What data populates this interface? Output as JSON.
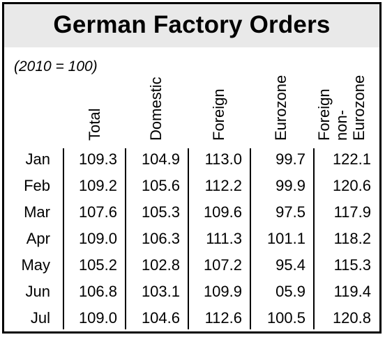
{
  "chart_data": {
    "type": "table",
    "title": "German Factory Orders",
    "subtitle": "(2010 = 100)",
    "columns": [
      "Total",
      "Domestic",
      "Foreign",
      "Eurozone",
      "Foreign\nnon-\nEurozone"
    ],
    "rows": [
      {
        "month": "Jan",
        "values": [
          "109.3",
          "104.9",
          "113.0",
          "99.7",
          "122.1"
        ]
      },
      {
        "month": "Feb",
        "values": [
          "109.2",
          "105.6",
          "112.2",
          "99.9",
          "120.6"
        ]
      },
      {
        "month": "Mar",
        "values": [
          "107.6",
          "105.3",
          "109.6",
          "97.5",
          "117.9"
        ]
      },
      {
        "month": "Apr",
        "values": [
          "109.0",
          "106.3",
          "111.3",
          "101.1",
          "118.2"
        ]
      },
      {
        "month": "May",
        "values": [
          "105.2",
          "102.8",
          "107.2",
          "95.4",
          "115.3"
        ]
      },
      {
        "month": "Jun",
        "values": [
          "106.8",
          "103.1",
          "109.9",
          "05.9",
          "119.4"
        ]
      },
      {
        "month": "Jul",
        "values": [
          "109.0",
          "104.6",
          "112.6",
          "100.5",
          "120.8"
        ]
      }
    ]
  }
}
